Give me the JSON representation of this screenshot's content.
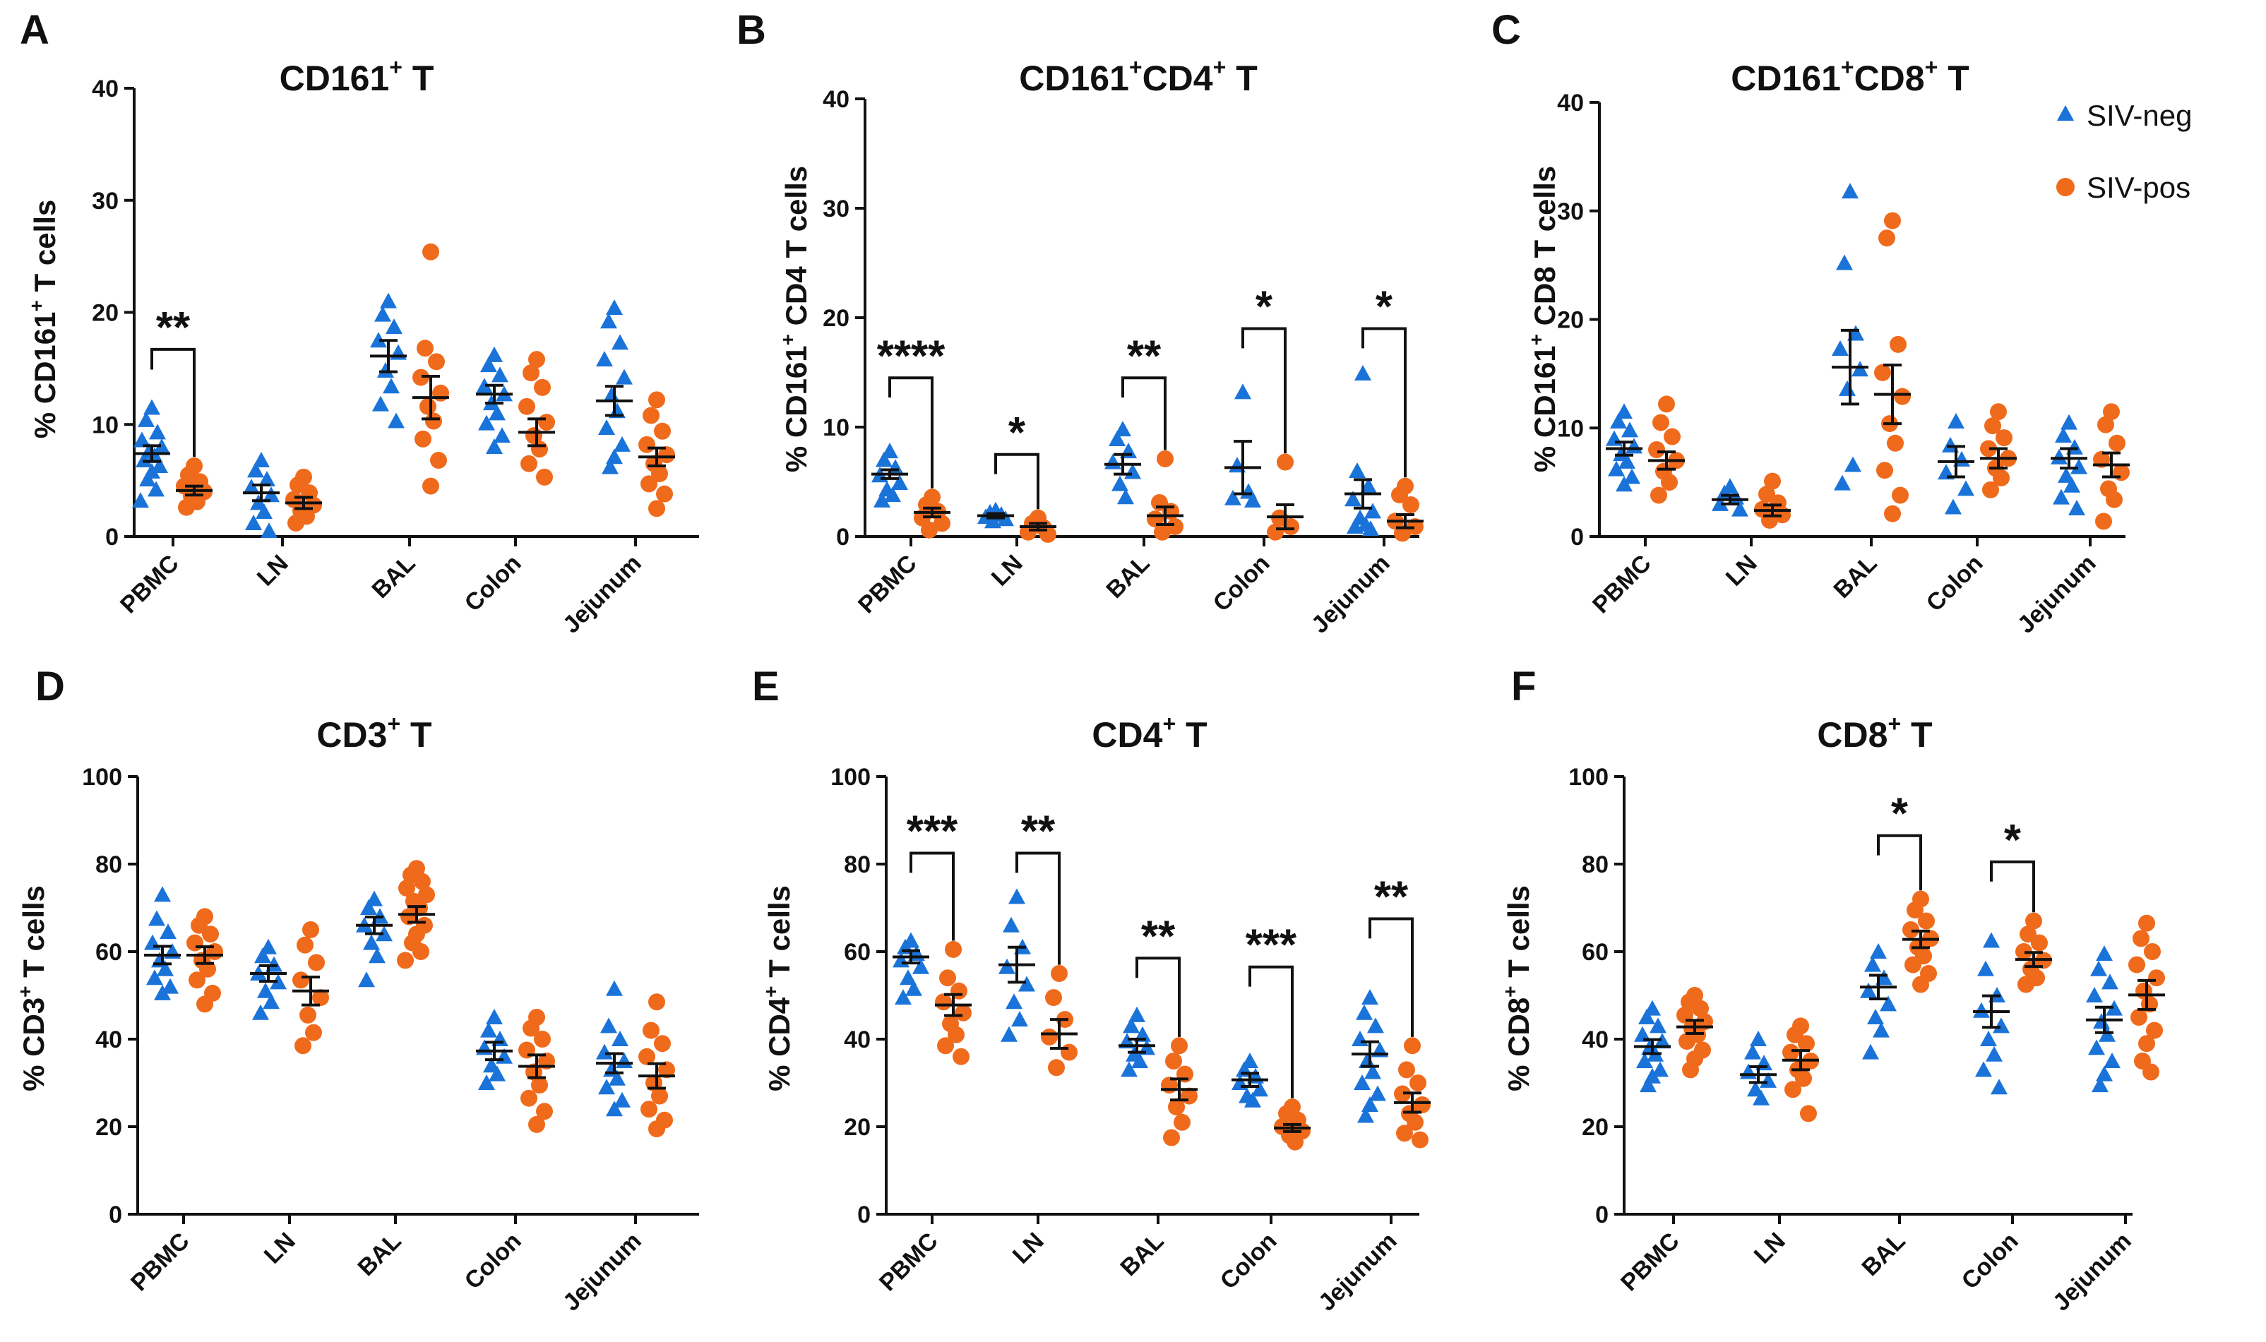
{
  "legend": {
    "neg": "SIV-neg",
    "pos": "SIV-pos",
    "neg_color": "#1a73d9",
    "pos_color": "#f06a1c"
  },
  "chart_data": [
    {
      "type": "scatter",
      "letter": "A",
      "title_main": "CD161",
      "title_sup": "+",
      "title_end": " T",
      "ylabel_pre": "% CD161",
      "ylabel_sup": "+",
      "ylabel_post": " T cells",
      "ylim": [
        0,
        40
      ],
      "yticks": [
        0,
        10,
        20,
        30,
        40
      ],
      "categories": [
        "PBMC",
        "LN",
        "BAL",
        "Colon",
        "Jejunum"
      ],
      "series": [
        {
          "name": "SIV-neg",
          "points": [
            [
              11.5,
              10.4,
              9.3,
              8.6,
              8,
              7.6,
              7.2,
              6.8,
              6.3,
              5.8,
              5.1,
              4.2,
              3.2
            ],
            [
              6.8,
              5.9,
              5.1,
              4.4,
              3.7,
              3,
              2.2,
              1.2,
              0.5
            ],
            [
              21,
              19.8,
              18.7,
              17.5,
              16.4,
              14.8,
              13.4,
              11.8,
              10.3
            ],
            [
              16.2,
              15.3,
              14.4,
              13.4,
              12.7,
              11.9,
              11,
              10.1,
              9,
              8
            ],
            [
              20.4,
              19.2,
              17.3,
              15.8,
              14.2,
              12.6,
              11.2,
              9.7,
              8.2,
              7.1,
              6.2
            ]
          ],
          "means": [
            7.4,
            3.9,
            16.1,
            12.7,
            12.1
          ],
          "sems": [
            0.7,
            0.7,
            1.4,
            0.8,
            1.3
          ]
        },
        {
          "name": "SIV-pos",
          "points": [
            [
              6.3,
              5.5,
              4.9,
              4.5,
              4,
              3.6,
              3.1,
              2.6
            ],
            [
              5.3,
              4.6,
              3.9,
              3.3,
              2.8,
              2.3,
              1.8,
              1.2
            ],
            [
              25.4,
              16.8,
              15.6,
              14.2,
              12.8,
              11.6,
              10.3,
              8.7,
              6.8,
              4.5
            ],
            [
              15.8,
              14.6,
              13.3,
              11.6,
              10.2,
              9,
              7.8,
              6.5,
              5.3
            ],
            [
              12.2,
              10.8,
              9.4,
              8.2,
              7.3,
              6.5,
              5.6,
              4.7,
              3.8,
              2.5
            ]
          ],
          "means": [
            4.1,
            3.0,
            12.4,
            9.3,
            7.1
          ],
          "sems": [
            0.4,
            0.5,
            1.9,
            1.2,
            0.8
          ]
        }
      ],
      "annotations": [
        {
          "category": "PBMC",
          "label": "**",
          "y_top": 16.7
        }
      ]
    },
    {
      "type": "scatter",
      "letter": "B",
      "title_main": "CD161",
      "title_sup": "+",
      "title_main2": "CD4",
      "title_sup2": "+",
      "title_end": " T",
      "ylabel_pre": "% CD161",
      "ylabel_sup": "+",
      "ylabel_post": " CD4 T cells",
      "ylim": [
        0,
        40
      ],
      "yticks": [
        0,
        10,
        20,
        30,
        40
      ],
      "categories": [
        "PBMC",
        "LN",
        "BAL",
        "Colon",
        "Jejunum"
      ],
      "series": [
        {
          "name": "SIV-neg",
          "points": [
            [
              7.8,
              7,
              6.3,
              5.6,
              4.9,
              4.3,
              3.8,
              3.3
            ],
            [
              2.4,
              2.2,
              2,
              1.8,
              1.6,
              1.4
            ],
            [
              9.8,
              8.9,
              7.8,
              6.8,
              5.9,
              4.8,
              3.6
            ],
            [
              13.2,
              6.5,
              4.1,
              3.5,
              3.3
            ],
            [
              14.9,
              6,
              4.6,
              3.4,
              2.3,
              1.7,
              1.1,
              0.9,
              0.7
            ]
          ],
          "means": [
            5.7,
            1.9,
            6.6,
            6.3,
            3.9
          ],
          "sems": [
            0.4,
            0.2,
            0.9,
            2.4,
            1.3
          ]
        },
        {
          "name": "SIV-pos",
          "points": [
            [
              3.6,
              2.9,
              2.3,
              1.7,
              1.2,
              0.6
            ],
            [
              1.7,
              1.2,
              0.8,
              0.4,
              0.2
            ],
            [
              7.1,
              3.1,
              2.3,
              1.6,
              0.9,
              0.4
            ],
            [
              6.8,
              1.7,
              0.9,
              0.4
            ],
            [
              4.6,
              3.8,
              2.9,
              1.4,
              0.9,
              0.3
            ]
          ],
          "means": [
            2.2,
            0.9,
            1.9,
            1.8,
            1.4
          ],
          "sems": [
            0.4,
            0.3,
            0.8,
            1.1,
            0.6
          ]
        }
      ],
      "annotations": [
        {
          "category": "PBMC",
          "label": "****",
          "y_top": 14.5
        },
        {
          "category": "LN",
          "label": "*",
          "y_top": 7.5
        },
        {
          "category": "BAL",
          "label": "**",
          "y_top": 14.5
        },
        {
          "category": "Colon",
          "label": "*",
          "y_top": 19.0
        },
        {
          "category": "Jejunum",
          "label": "*",
          "y_top": 19.0
        }
      ]
    },
    {
      "type": "scatter",
      "letter": "C",
      "title_main": "CD161",
      "title_sup": "+",
      "title_main2": "CD8",
      "title_sup2": "+",
      "title_end": " T",
      "ylabel_pre": "% CD161",
      "ylabel_sup": "+",
      "ylabel_post": " CD8 T cells",
      "ylim": [
        0,
        40
      ],
      "yticks": [
        0,
        10,
        20,
        30,
        40
      ],
      "categories": [
        "PBMC",
        "LN",
        "BAL",
        "Colon",
        "Jejunum"
      ],
      "series": [
        {
          "name": "SIV-neg",
          "points": [
            [
              11.5,
              10.6,
              9.8,
              9,
              8.3,
              7.6,
              6.9,
              6.2,
              5.5,
              4.8
            ],
            [
              4.6,
              4,
              3.6,
              3,
              2.5
            ],
            [
              31.8,
              25.2,
              18.7,
              17.3,
              15.4,
              13.6,
              6.6,
              4.9
            ],
            [
              10.6,
              8.4,
              7.1,
              5.9,
              4.4,
              2.7
            ],
            [
              10.5,
              9.3,
              8.2,
              7.3,
              6.4,
              5.6,
              4.7,
              3.6,
              2.6
            ]
          ],
          "means": [
            8.1,
            3.4,
            15.6,
            6.9,
            7.2
          ],
          "sems": [
            0.6,
            0.4,
            3.4,
            1.4,
            0.9
          ]
        },
        {
          "name": "SIV-pos",
          "points": [
            [
              12.2,
              10.5,
              9.2,
              8,
              7,
              6,
              5,
              3.8
            ],
            [
              5.1,
              3.9,
              3.1,
              2.5,
              2,
              1.5
            ],
            [
              29.1,
              27.5,
              17.7,
              15.1,
              12.9,
              10.4,
              8.6,
              6.1,
              3.8,
              2.1
            ],
            [
              11.5,
              10.2,
              9.1,
              8.1,
              7.2,
              6.3,
              5.4,
              4.3
            ],
            [
              11.5,
              10.3,
              8.6,
              7.1,
              5.9,
              4.4,
              3.4,
              1.4
            ]
          ],
          "means": [
            7.0,
            2.4,
            13.1,
            7.2,
            6.6
          ],
          "sems": [
            0.8,
            0.5,
            2.7,
            0.9,
            1.1
          ]
        }
      ],
      "annotations": []
    },
    {
      "type": "scatter",
      "letter": "D",
      "title_main": "CD3",
      "title_sup": "+",
      "title_end": " T",
      "ylabel_pre": "% CD3",
      "ylabel_sup": "+",
      "ylabel_post": " T cells",
      "ylim": [
        0,
        100
      ],
      "yticks": [
        0,
        20,
        40,
        60,
        80,
        100
      ],
      "categories": [
        "PBMC",
        "LN",
        "BAL",
        "Colon",
        "Jejunum"
      ],
      "series": [
        {
          "name": "SIV-neg",
          "points": [
            [
              73,
              67.5,
              64.5,
              62,
              60,
              58,
              56,
              54,
              52,
              50.5
            ],
            [
              61,
              59,
              57,
              55,
              53,
              51,
              48.5,
              46
            ],
            [
              72,
              70,
              68,
              66,
              64,
              62,
              59,
              53.5
            ],
            [
              45,
              42,
              40,
              38,
              36,
              34,
              32,
              30
            ],
            [
              51.5,
              43,
              40,
              37,
              35,
              33,
              31,
              29,
              26,
              24
            ]
          ],
          "means": [
            59.2,
            55.0,
            66.0,
            37.3,
            34.5
          ],
          "sems": [
            2.0,
            1.8,
            1.9,
            2.0,
            2.2
          ]
        },
        {
          "name": "SIV-pos",
          "points": [
            [
              68,
              66,
              64,
              62,
              60,
              58,
              56,
              53.5,
              50.5,
              48
            ],
            [
              65,
              61.5,
              57.5,
              53.5,
              49.5,
              45.5,
              41.5,
              38.5
            ],
            [
              79,
              77.5,
              76,
              74.5,
              73,
              71.5,
              70,
              68,
              66,
              64,
              62,
              60,
              58
            ],
            [
              45,
              42.5,
              40,
              37.5,
              35,
              32.5,
              29.5,
              26.5,
              23.5,
              20.5
            ],
            [
              48.5,
              42,
              39,
              36,
              33,
              30,
              27,
              24,
              21.5,
              19.5
            ]
          ],
          "means": [
            59.2,
            51.0,
            68.5,
            33.8,
            31.6
          ],
          "sems": [
            1.9,
            3.2,
            1.8,
            2.6,
            2.8
          ]
        }
      ],
      "annotations": []
    },
    {
      "type": "scatter",
      "letter": "E",
      "title_main": "CD4",
      "title_sup": "+",
      "title_end": " T",
      "ylabel_pre": "% CD4",
      "ylabel_sup": "+",
      "ylabel_post": " T cells",
      "ylim": [
        0,
        100
      ],
      "yticks": [
        0,
        20,
        40,
        60,
        80,
        100
      ],
      "categories": [
        "PBMC",
        "LN",
        "BAL",
        "Colon",
        "Jejunum"
      ],
      "series": [
        {
          "name": "SIV-neg",
          "points": [
            [
              62.5,
              61,
              59.5,
              58,
              56.5,
              54,
              51.5,
              49.5
            ],
            [
              72.5,
              66,
              61,
              56.5,
              52.5,
              48.5,
              44.5,
              41
            ],
            [
              45.5,
              43,
              41,
              39.5,
              38,
              36.5,
              35,
              33
            ],
            [
              35,
              33,
              31.5,
              30,
              28.5,
              27,
              26
            ],
            [
              49.5,
              46,
              43,
              40,
              37.5,
              35,
              32.5,
              30,
              27.5,
              25,
              22.5
            ]
          ],
          "means": [
            58.8,
            57.0,
            38.5,
            30.7,
            36.6
          ],
          "sems": [
            1.4,
            4.0,
            1.5,
            1.5,
            2.8
          ]
        },
        {
          "name": "SIV-pos",
          "points": [
            [
              60.5,
              54,
              51,
              48.5,
              46,
              43.5,
              41,
              38.5,
              36
            ],
            [
              55,
              49.5,
              44.5,
              40.5,
              37,
              33.5
            ],
            [
              38.5,
              35,
              32,
              29.5,
              27,
              24.5,
              21,
              17.5
            ],
            [
              24.5,
              23,
              21.5,
              20,
              19,
              18,
              16.5
            ],
            [
              38.5,
              33,
              30,
              27.5,
              25,
              23,
              21,
              18.5,
              17
            ]
          ],
          "means": [
            47.8,
            41.2,
            28.5,
            19.7,
            25.5
          ],
          "sems": [
            2.4,
            3.3,
            2.4,
            0.8,
            2.2
          ]
        }
      ],
      "annotations": [
        {
          "category": "PBMC",
          "label": "***",
          "y_top": 82.5
        },
        {
          "category": "LN",
          "label": "**",
          "y_top": 82.5
        },
        {
          "category": "BAL",
          "label": "**",
          "y_top": 58.5
        },
        {
          "category": "Colon",
          "label": "***",
          "y_top": 56.5
        },
        {
          "category": "Jejunum",
          "label": "**",
          "y_top": 67.5
        }
      ]
    },
    {
      "type": "scatter",
      "letter": "F",
      "title_main": "CD8",
      "title_sup": "+",
      "title_end": " T",
      "ylabel_pre": "% CD8",
      "ylabel_sup": "+",
      "ylabel_post": " T cells",
      "ylim": [
        0,
        100
      ],
      "yticks": [
        0,
        20,
        40,
        60,
        80,
        100
      ],
      "categories": [
        "PBMC",
        "LN",
        "BAL",
        "Colon",
        "Jejunum"
      ],
      "series": [
        {
          "name": "SIV-neg",
          "points": [
            [
              47,
              45,
              43,
              41,
              39.5,
              38,
              36.5,
              35,
              33,
              31.5,
              29.5
            ],
            [
              40,
              37,
              34.5,
              32.5,
              30.5,
              28.5,
              26.5
            ],
            [
              60,
              57,
              54,
              51,
              48,
              45,
              42,
              37
            ],
            [
              62.5,
              56,
              50,
              46.5,
              43,
              40,
              36.5,
              33,
              29
            ],
            [
              59.5,
              56,
              53,
              50,
              47,
              44,
              41,
              38,
              35,
              32,
              29.5
            ]
          ],
          "means": [
            38.3,
            31.9,
            51.9,
            46.3,
            44.4
          ],
          "sems": [
            1.6,
            1.8,
            2.7,
            3.6,
            2.9
          ]
        },
        {
          "name": "SIV-pos",
          "points": [
            [
              50,
              48.5,
              47,
              45.5,
              44,
              42.5,
              41,
              39.5,
              37.5,
              35.5,
              33
            ],
            [
              43,
              41,
              39,
              37,
              35,
              33,
              31,
              28.5,
              23
            ],
            [
              72,
              69.5,
              67,
              65,
              63,
              61,
              59,
              57,
              55,
              52.5
            ],
            [
              67,
              64,
              62,
              60,
              58,
              56,
              54,
              52.5
            ],
            [
              66.5,
              63,
              60,
              57,
              54,
              51,
              48,
              45,
              42,
              39,
              35,
              32.5
            ]
          ],
          "means": [
            42.8,
            35.2,
            62.8,
            58.2,
            50.1
          ],
          "sems": [
            1.5,
            2.2,
            1.9,
            1.6,
            3.3
          ]
        }
      ],
      "annotations": [
        {
          "category": "BAL",
          "label": "*",
          "y_top": 86.5
        },
        {
          "category": "Colon",
          "label": "*",
          "y_top": 80.5
        }
      ]
    }
  ]
}
